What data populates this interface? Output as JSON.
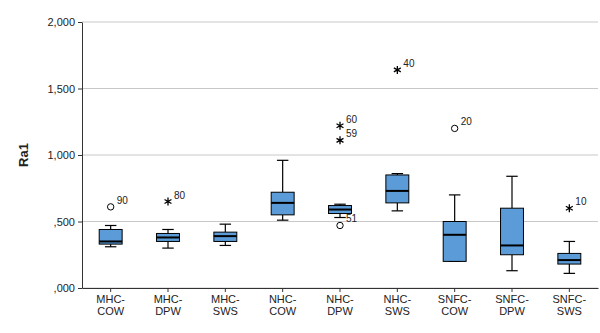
{
  "chart_data": {
    "type": "box",
    "y_label": "Ra1",
    "categories": [
      "MHC-COW",
      "MHC-DPW",
      "MHC-SWS",
      "NHC-COW",
      "NHC-DPW",
      "NHC-SWS",
      "SNFC-COW",
      "SNFC-DPW",
      "SNFC-SWS"
    ],
    "boxes": [
      {
        "min": 0.31,
        "q1": 0.33,
        "median": 0.35,
        "q3": 0.44,
        "max": 0.47,
        "outliers": [
          {
            "value": 0.61,
            "label": "90",
            "marker": "circle"
          }
        ]
      },
      {
        "min": 0.3,
        "q1": 0.35,
        "median": 0.38,
        "q3": 0.41,
        "max": 0.44,
        "outliers": [
          {
            "value": 0.65,
            "label": "80",
            "marker": "star"
          }
        ]
      },
      {
        "min": 0.32,
        "q1": 0.35,
        "median": 0.39,
        "q3": 0.42,
        "max": 0.48,
        "outliers": []
      },
      {
        "min": 0.51,
        "q1": 0.55,
        "median": 0.64,
        "q3": 0.72,
        "max": 0.96,
        "outliers": []
      },
      {
        "min": 0.53,
        "q1": 0.56,
        "median": 0.59,
        "q3": 0.62,
        "max": 0.63,
        "outliers": [
          {
            "value": 1.22,
            "label": "60",
            "marker": "star"
          },
          {
            "value": 1.11,
            "label": "59",
            "marker": "star"
          },
          {
            "value": 0.47,
            "label": "51",
            "marker": "circle"
          }
        ]
      },
      {
        "min": 0.58,
        "q1": 0.64,
        "median": 0.73,
        "q3": 0.85,
        "max": 0.86,
        "outliers": [
          {
            "value": 1.64,
            "label": "40",
            "marker": "star"
          }
        ]
      },
      {
        "min": 0.2,
        "q1": 0.2,
        "median": 0.4,
        "q3": 0.5,
        "max": 0.7,
        "outliers": [
          {
            "value": 1.2,
            "label": "20",
            "marker": "circle"
          }
        ]
      },
      {
        "min": 0.13,
        "q1": 0.25,
        "median": 0.32,
        "q3": 0.6,
        "max": 0.84,
        "outliers": []
      },
      {
        "min": 0.11,
        "q1": 0.18,
        "median": 0.21,
        "q3": 0.26,
        "max": 0.35,
        "outliers": [
          {
            "value": 0.6,
            "label": "10",
            "marker": "star"
          }
        ]
      }
    ],
    "color": "#5a9bd8",
    "ylim": [
      0,
      2
    ],
    "yticks": [
      {
        "value": 0,
        "label": ",000"
      },
      {
        "value": 0.5,
        "label": ",500"
      },
      {
        "value": 1,
        "label": "1,000"
      },
      {
        "value": 1.5,
        "label": "1,500"
      },
      {
        "value": 2,
        "label": "2,000"
      }
    ],
    "grid": true
  }
}
